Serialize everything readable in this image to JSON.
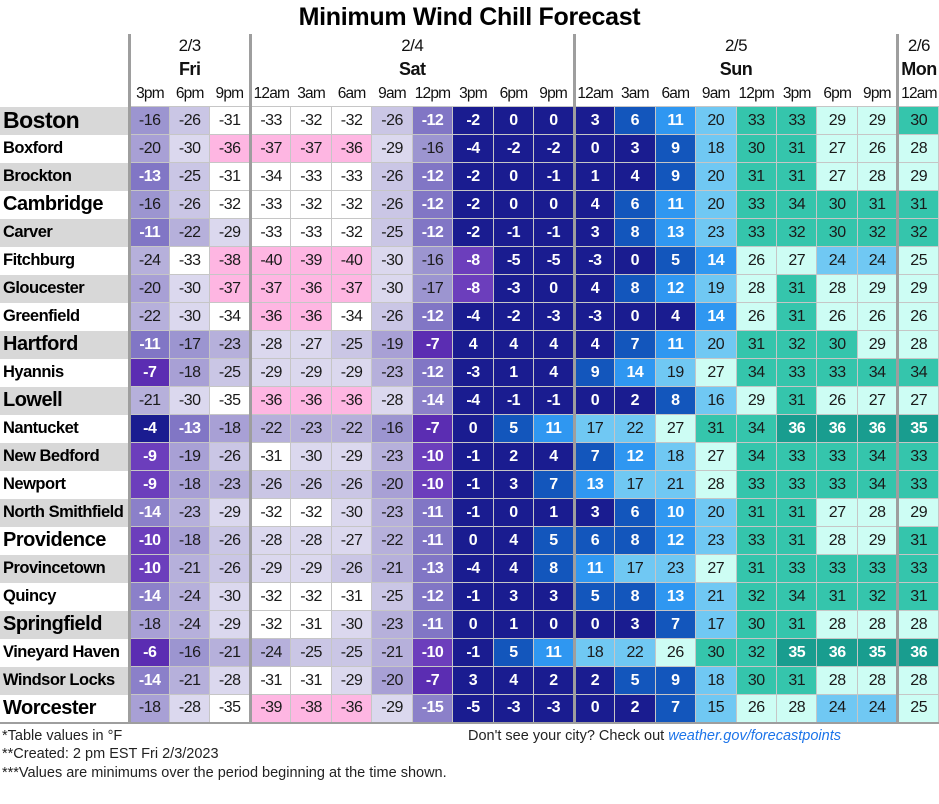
{
  "chart_data": {
    "type": "heatmap",
    "title": "Minimum Wind Chill Forecast",
    "unit": "°F",
    "column_groups": [
      {
        "date": "2/3",
        "day": "Fri",
        "times": [
          "3pm",
          "6pm",
          "9pm"
        ]
      },
      {
        "date": "2/4",
        "day": "Sat",
        "times": [
          "12am",
          "3am",
          "6am",
          "9am",
          "12pm",
          "3pm",
          "6pm",
          "9pm"
        ]
      },
      {
        "date": "2/5",
        "day": "Sun",
        "times": [
          "12am",
          "3am",
          "6am",
          "9am",
          "12pm",
          "3pm",
          "6pm",
          "9pm"
        ]
      },
      {
        "date": "2/6",
        "day": "Mon",
        "times": [
          "12am"
        ]
      }
    ],
    "rows": [
      {
        "city": "Boston",
        "emphasis": "large",
        "values": [
          -16,
          -26,
          -31,
          -33,
          -32,
          -32,
          -26,
          -12,
          -2,
          0,
          0,
          3,
          6,
          11,
          20,
          33,
          33,
          29,
          29,
          30
        ]
      },
      {
        "city": "Boxford",
        "emphasis": "small",
        "values": [
          -20,
          -30,
          -36,
          -37,
          -37,
          -36,
          -29,
          -16,
          -4,
          -2,
          -2,
          0,
          3,
          9,
          18,
          30,
          31,
          27,
          26,
          28
        ]
      },
      {
        "city": "Brockton",
        "emphasis": "small",
        "values": [
          -13,
          -25,
          -31,
          -34,
          -33,
          -33,
          -26,
          -12,
          -2,
          0,
          -1,
          1,
          4,
          9,
          20,
          31,
          31,
          27,
          28,
          29
        ]
      },
      {
        "city": "Cambridge",
        "emphasis": "medium",
        "values": [
          -16,
          -26,
          -32,
          -33,
          -32,
          -32,
          -26,
          -12,
          -2,
          0,
          0,
          4,
          6,
          11,
          20,
          33,
          34,
          30,
          31,
          31
        ]
      },
      {
        "city": "Carver",
        "emphasis": "small",
        "values": [
          -11,
          -22,
          -29,
          -33,
          -33,
          -32,
          -25,
          -12,
          -2,
          -1,
          -1,
          3,
          8,
          13,
          23,
          33,
          32,
          30,
          32,
          32
        ]
      },
      {
        "city": "Fitchburg",
        "emphasis": "small",
        "values": [
          -24,
          -33,
          -38,
          -40,
          -39,
          -40,
          -30,
          -16,
          -8,
          -5,
          -5,
          -3,
          0,
          5,
          14,
          26,
          27,
          24,
          24,
          25
        ]
      },
      {
        "city": "Gloucester",
        "emphasis": "small",
        "values": [
          -20,
          -30,
          -37,
          -37,
          -36,
          -37,
          -30,
          -17,
          -8,
          -3,
          0,
          4,
          8,
          12,
          19,
          28,
          31,
          28,
          29,
          29
        ]
      },
      {
        "city": "Greenfield",
        "emphasis": "small",
        "values": [
          -22,
          -30,
          -34,
          -36,
          -36,
          -34,
          -26,
          -12,
          -4,
          -2,
          -3,
          -3,
          0,
          4,
          14,
          26,
          31,
          26,
          26,
          26
        ]
      },
      {
        "city": "Hartford",
        "emphasis": "medium",
        "values": [
          -11,
          -17,
          -23,
          -28,
          -27,
          -25,
          -19,
          -7,
          4,
          4,
          4,
          4,
          7,
          11,
          20,
          31,
          32,
          30,
          29,
          28
        ]
      },
      {
        "city": "Hyannis",
        "emphasis": "small",
        "values": [
          -7,
          -18,
          -25,
          -29,
          -29,
          -29,
          -23,
          -12,
          -3,
          1,
          4,
          9,
          14,
          19,
          27,
          34,
          33,
          33,
          34,
          34
        ]
      },
      {
        "city": "Lowell",
        "emphasis": "medium",
        "values": [
          -21,
          -30,
          -35,
          -36,
          -36,
          -36,
          -28,
          -14,
          -4,
          -1,
          -1,
          0,
          2,
          8,
          16,
          29,
          31,
          26,
          27,
          27
        ]
      },
      {
        "city": "Nantucket",
        "emphasis": "small",
        "values": [
          -4,
          -13,
          -18,
          -22,
          -23,
          -22,
          -16,
          -7,
          0,
          5,
          11,
          17,
          22,
          27,
          31,
          34,
          36,
          36,
          36,
          35
        ]
      },
      {
        "city": "New Bedford",
        "emphasis": "small",
        "values": [
          -9,
          -19,
          -26,
          -31,
          -30,
          -29,
          -23,
          -10,
          -1,
          2,
          4,
          7,
          12,
          18,
          27,
          34,
          33,
          33,
          34,
          33
        ]
      },
      {
        "city": "Newport",
        "emphasis": "small",
        "values": [
          -9,
          -18,
          -23,
          -26,
          -26,
          -26,
          -20,
          -10,
          -1,
          3,
          7,
          13,
          17,
          21,
          28,
          33,
          33,
          33,
          34,
          33
        ]
      },
      {
        "city": "North Smithfield",
        "emphasis": "small",
        "values": [
          -14,
          -23,
          -29,
          -32,
          -32,
          -30,
          -23,
          -11,
          -1,
          0,
          1,
          3,
          6,
          10,
          20,
          31,
          31,
          27,
          28,
          29
        ]
      },
      {
        "city": "Providence",
        "emphasis": "medium",
        "values": [
          -10,
          -18,
          -26,
          -28,
          -28,
          -27,
          -22,
          -11,
          0,
          4,
          5,
          6,
          8,
          12,
          23,
          33,
          31,
          28,
          29,
          31
        ]
      },
      {
        "city": "Provincetown",
        "emphasis": "small",
        "values": [
          -10,
          -21,
          -26,
          -29,
          -29,
          -26,
          -21,
          -13,
          -4,
          4,
          8,
          11,
          17,
          23,
          27,
          31,
          33,
          33,
          33,
          33
        ]
      },
      {
        "city": "Quincy",
        "emphasis": "small",
        "values": [
          -14,
          -24,
          -30,
          -32,
          -32,
          -31,
          -25,
          -12,
          -1,
          3,
          3,
          5,
          8,
          13,
          21,
          32,
          34,
          31,
          32,
          31
        ]
      },
      {
        "city": "Springfield",
        "emphasis": "medium",
        "values": [
          -18,
          -24,
          -29,
          -32,
          -31,
          -30,
          -23,
          -11,
          0,
          1,
          0,
          0,
          3,
          7,
          17,
          30,
          31,
          28,
          28,
          28
        ]
      },
      {
        "city": "Vineyard Haven",
        "emphasis": "small",
        "values": [
          -6,
          -16,
          -21,
          -24,
          -25,
          -25,
          -21,
          -10,
          -1,
          5,
          11,
          18,
          22,
          26,
          30,
          32,
          35,
          36,
          35,
          36
        ]
      },
      {
        "city": "Windsor Locks",
        "emphasis": "small",
        "values": [
          -14,
          -21,
          -28,
          -31,
          -31,
          -29,
          -20,
          -7,
          3,
          4,
          2,
          2,
          5,
          9,
          18,
          30,
          31,
          28,
          28,
          28
        ]
      },
      {
        "city": "Worcester",
        "emphasis": "medium",
        "values": [
          -18,
          -28,
          -35,
          -39,
          -38,
          -36,
          -29,
          -15,
          -5,
          -3,
          -3,
          0,
          2,
          7,
          15,
          26,
          28,
          24,
          24,
          25
        ]
      }
    ],
    "color_scale": [
      {
        "min": -99,
        "max": -36,
        "bg": "#feb6e2",
        "text": "#1a1a1a"
      },
      {
        "min": -35,
        "max": -31,
        "bg": "#ffffff",
        "text": "#1a1a1a"
      },
      {
        "min": -30,
        "max": -27,
        "bg": "#dbd8ee",
        "text": "#1a1a1a"
      },
      {
        "min": -26,
        "max": -25,
        "bg": "#cac6e5",
        "text": "#1a1a1a"
      },
      {
        "min": -24,
        "max": -21,
        "bg": "#b6b0db",
        "text": "#1a1a1a"
      },
      {
        "min": -20,
        "max": -18,
        "bg": "#a8a0d5",
        "text": "#1a1a1a"
      },
      {
        "min": -17,
        "max": -16,
        "bg": "#9c95d0",
        "text": "#1a1a1a"
      },
      {
        "min": -15,
        "max": -14,
        "bg": "#8b80c9",
        "text": "#ffffff"
      },
      {
        "min": -13,
        "max": -11,
        "bg": "#8176c5",
        "text": "#ffffff"
      },
      {
        "min": -10,
        "max": -8,
        "bg": "#6c3ebc",
        "text": "#ffffff"
      },
      {
        "min": -7,
        "max": -6,
        "bg": "#5b2db2",
        "text": "#ffffff"
      },
      {
        "min": -5,
        "max": 4,
        "bg": "#1a1c90",
        "text": "#ffffff"
      },
      {
        "min": 5,
        "max": 9,
        "bg": "#1356bc",
        "text": "#ffffff"
      },
      {
        "min": 10,
        "max": 14,
        "bg": "#2f97f1",
        "text": "#ffffff"
      },
      {
        "min": 15,
        "max": 24,
        "bg": "#70c8f3",
        "text": "#1a1a1a"
      },
      {
        "min": 25,
        "max": 29,
        "bg": "#cdfdf4",
        "text": "#1a1a1a"
      },
      {
        "min": 30,
        "max": 34,
        "bg": "#35c5ac",
        "text": "#1a1a1a"
      },
      {
        "min": 35,
        "max": 99,
        "bg": "#199d8f",
        "text": "#ffffff"
      }
    ],
    "row_stripe_colors": {
      "odd": "#d8d8d8",
      "even": "#ffffff"
    }
  },
  "footnotes": [
    "*Table values in °F",
    "**Created: 2 pm EST Fri 2/3/2023",
    "***Values are minimums over the period beginning at the time shown."
  ],
  "see_city": {
    "prefix": "Don't see your city? Check out ",
    "link": "weather.gov/forecastpoints"
  }
}
